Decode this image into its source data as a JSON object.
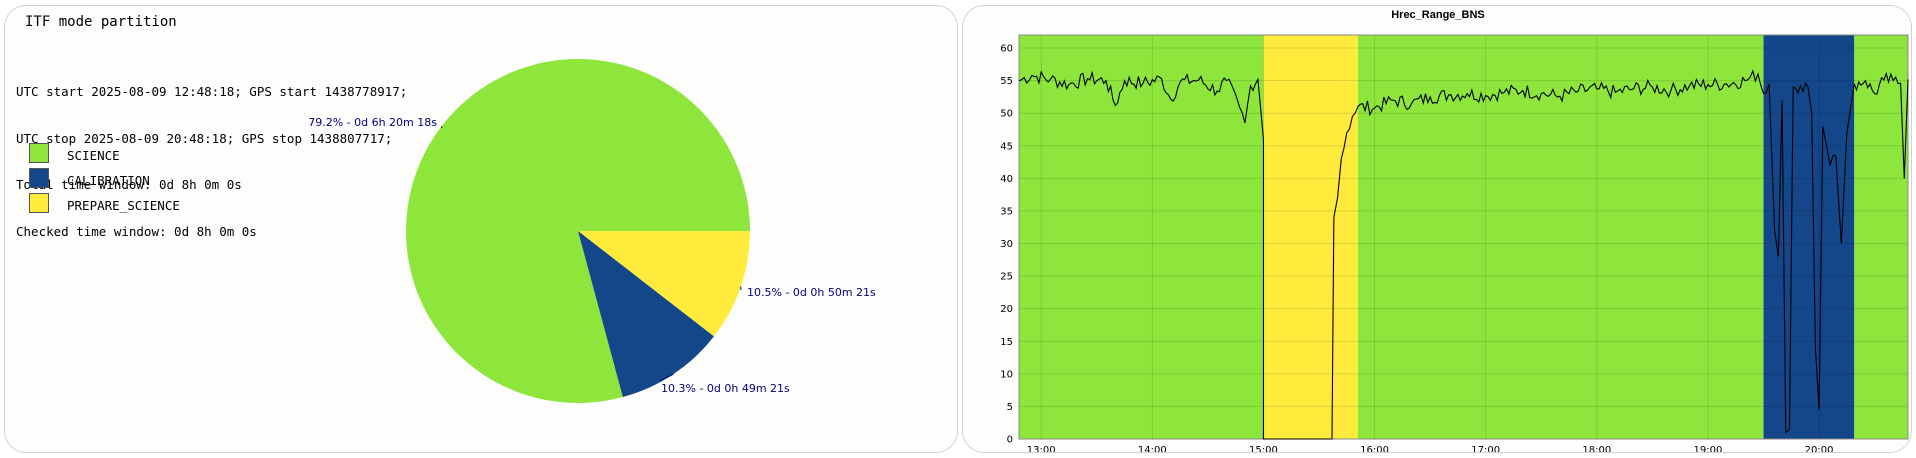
{
  "left": {
    "title": "ITF mode partition",
    "info_lines": [
      "UTC start 2025-08-09 12:48:18; GPS start 1438778917;",
      "UTC stop 2025-08-09 20:48:18; GPS stop 1438807717;",
      "Total time window: 0d 8h 0m 0s",
      "Checked time window: 0d 8h 0m 0s"
    ]
  },
  "chart_data": [
    {
      "type": "pie",
      "title": "ITF mode partition",
      "legend": [
        {
          "label": "SCIENCE",
          "color": "#8ee63c"
        },
        {
          "label": "CALIBRATION",
          "color": "#14468a"
        },
        {
          "label": "PREPARE_SCIENCE",
          "color": "#ffeb3b"
        }
      ],
      "slices": [
        {
          "name": "SCIENCE",
          "value": 79.2,
          "label": "79.2% - 0d 6h 20m 18s",
          "color": "#8ee63c"
        },
        {
          "name": "PREPARE_SCIENCE",
          "value": 10.5,
          "label": "10.5% - 0d 0h 50m 21s",
          "color": "#ffeb3b"
        },
        {
          "name": "CALIBRATION",
          "value": 10.3,
          "label": "10.3% - 0d 0h 49m 21s",
          "color": "#14468a"
        }
      ]
    },
    {
      "type": "line",
      "title": "Hrec_Range_BNS",
      "xlabel": "",
      "ylabel": "",
      "x_range": [
        "12:48",
        "20:48"
      ],
      "ylim": [
        0,
        62
      ],
      "x_ticks": [
        "13:00",
        "14:00",
        "15:00",
        "16:00",
        "17:00",
        "18:00",
        "19:00",
        "20:00"
      ],
      "y_ticks": [
        0,
        5,
        10,
        15,
        20,
        25,
        30,
        35,
        40,
        45,
        50,
        55,
        60
      ],
      "grid": true,
      "background_bands": [
        {
          "mode": "SCIENCE",
          "start": "12:48",
          "end": "15:00",
          "color": "#8ee63c"
        },
        {
          "mode": "PREPARE_SCIENCE",
          "start": "15:00",
          "end": "15:51",
          "color": "#ffeb3b"
        },
        {
          "mode": "SCIENCE",
          "start": "15:51",
          "end": "19:30",
          "color": "#8ee63c"
        },
        {
          "mode": "CALIBRATION",
          "start": "19:30",
          "end": "20:19",
          "color": "#14468a"
        },
        {
          "mode": "SCIENCE",
          "start": "20:19",
          "end": "20:48",
          "color": "#8ee63c"
        }
      ],
      "series": [
        {
          "line_color": "#000000",
          "points": [
            [
              "12:48",
              55.0
            ],
            [
              "12:55",
              55.8
            ],
            [
              "13:05",
              55.2
            ],
            [
              "13:15",
              54.4
            ],
            [
              "13:25",
              55.3
            ],
            [
              "13:35",
              55.0
            ],
            [
              "13:40",
              51.2
            ],
            [
              "13:45",
              55.0
            ],
            [
              "13:55",
              54.6
            ],
            [
              "14:05",
              55.3
            ],
            [
              "14:10",
              52.1
            ],
            [
              "14:15",
              54.8
            ],
            [
              "14:25",
              55.1
            ],
            [
              "14:35",
              53.4
            ],
            [
              "14:40",
              55.0
            ],
            [
              "14:47",
              51.0
            ],
            [
              "14:50",
              48.5
            ],
            [
              "14:53",
              54.2
            ],
            [
              "14:57",
              55.2
            ],
            [
              "15:00",
              46.0
            ],
            [
              "15:00",
              0.0
            ],
            [
              "15:37",
              0.0
            ],
            [
              "15:38",
              34.0
            ],
            [
              "15:40",
              37.0
            ],
            [
              "15:42",
              43.0
            ],
            [
              "15:45",
              47.0
            ],
            [
              "15:48",
              49.5
            ],
            [
              "15:51",
              51.0
            ],
            [
              "16:00",
              50.8
            ],
            [
              "16:10",
              52.0
            ],
            [
              "16:20",
              51.5
            ],
            [
              "16:30",
              52.5
            ],
            [
              "16:40",
              52.8
            ],
            [
              "16:50",
              53.0
            ],
            [
              "17:00",
              52.7
            ],
            [
              "17:10",
              53.2
            ],
            [
              "17:20",
              53.5
            ],
            [
              "17:30",
              53.0
            ],
            [
              "17:40",
              52.6
            ],
            [
              "17:50",
              53.4
            ],
            [
              "18:00",
              53.7
            ],
            [
              "18:10",
              53.2
            ],
            [
              "18:20",
              53.8
            ],
            [
              "18:30",
              54.0
            ],
            [
              "18:40",
              53.5
            ],
            [
              "18:50",
              54.2
            ],
            [
              "19:00",
              54.4
            ],
            [
              "19:10",
              54.5
            ],
            [
              "19:20",
              55.0
            ],
            [
              "19:27",
              56.0
            ],
            [
              "19:30",
              53.0
            ],
            [
              "19:33",
              54.5
            ],
            [
              "19:36",
              32.0
            ],
            [
              "19:38",
              28.0
            ],
            [
              "19:40",
              52.0
            ],
            [
              "19:42",
              1.0
            ],
            [
              "19:44",
              1.5
            ],
            [
              "19:46",
              54.0
            ],
            [
              "19:50",
              54.2
            ],
            [
              "19:54",
              54.0
            ],
            [
              "19:56",
              50.0
            ],
            [
              "19:58",
              14.0
            ],
            [
              "20:00",
              4.5
            ],
            [
              "20:02",
              48.0
            ],
            [
              "20:06",
              42.0
            ],
            [
              "20:09",
              43.5
            ],
            [
              "20:12",
              30.0
            ],
            [
              "20:15",
              47.0
            ],
            [
              "20:19",
              54.5
            ],
            [
              "20:25",
              55.0
            ],
            [
              "20:30",
              53.0
            ],
            [
              "20:35",
              55.1
            ],
            [
              "20:40",
              55.0
            ],
            [
              "20:44",
              54.6
            ],
            [
              "20:46",
              40.0
            ],
            [
              "20:48",
              55.2
            ]
          ]
        }
      ]
    }
  ]
}
